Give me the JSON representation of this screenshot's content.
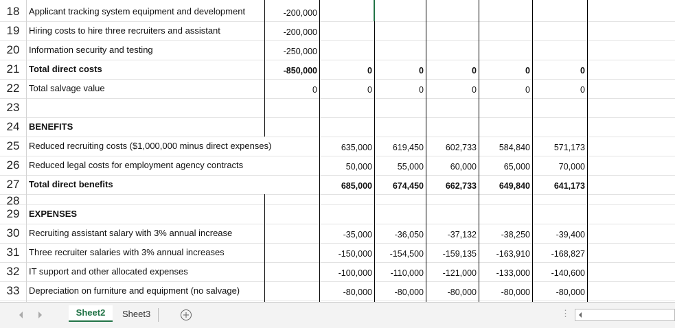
{
  "columns_x": null,
  "rows": [
    {
      "num": "18",
      "label": "Applicant tracking system equipment and development",
      "cells": [
        "-200,000",
        null,
        null,
        null,
        null,
        null
      ]
    },
    {
      "num": "19",
      "label": "Hiring costs to hire three recruiters and assistant",
      "cells": [
        "-200,000",
        null,
        null,
        null,
        null,
        null
      ]
    },
    {
      "num": "20",
      "label": "Information security and testing",
      "cells": [
        "-250,000",
        null,
        null,
        null,
        null,
        null
      ]
    },
    {
      "num": "21",
      "label": "Total direct costs",
      "bold": true,
      "cells": [
        "-850,000",
        "0",
        "0",
        "0",
        "0",
        "0"
      ]
    },
    {
      "num": "22",
      "label": "Total salvage value",
      "cells": [
        "0",
        "0",
        "0",
        "0",
        "0",
        "0"
      ]
    },
    {
      "num": "23",
      "label": null,
      "cells": [
        null,
        null,
        null,
        null,
        null,
        null
      ]
    },
    {
      "num": "24",
      "label": "BENEFITS",
      "bold": true,
      "cells": [
        null,
        null,
        null,
        null,
        null,
        null
      ]
    },
    {
      "num": "25",
      "label": "Reduced recruiting costs ($1,000,000 minus direct expenses)",
      "cells": [
        null,
        "635,000",
        "619,450",
        "602,733",
        "584,840",
        "571,173"
      ]
    },
    {
      "num": "26",
      "label": "Reduced legal costs for employment agency contracts",
      "cells": [
        null,
        "50,000",
        "55,000",
        "60,000",
        "65,000",
        "70,000"
      ]
    },
    {
      "num": "27",
      "label": "Total direct benefits",
      "bold": true,
      "cells": [
        null,
        "685,000",
        "674,450",
        "662,733",
        "649,840",
        "641,173"
      ]
    },
    {
      "num": "28",
      "label": null,
      "cells": [
        null,
        null,
        null,
        null,
        null,
        null
      ]
    },
    {
      "num": "29",
      "label": "EXPENSES",
      "bold": true,
      "cells": [
        null,
        null,
        null,
        null,
        null,
        null
      ]
    },
    {
      "num": "30",
      "label": "Recruiting assistant salary with 3% annual increase",
      "cells": [
        null,
        "-35,000",
        "-36,050",
        "-37,132",
        "-38,250",
        "-39,400"
      ]
    },
    {
      "num": "31",
      "label": "Three recruiter salaries with 3% annual increases",
      "cells": [
        null,
        "-150,000",
        "-154,500",
        "-159,135",
        "-163,910",
        "-168,827"
      ]
    },
    {
      "num": "32",
      "label": "IT support and other allocated expenses",
      "cells": [
        null,
        "-100,000",
        "-110,000",
        "-121,000",
        "-133,000",
        "-140,600"
      ]
    },
    {
      "num": "33",
      "label": "Depreciation on furniture and equipment (no salvage)",
      "cells": [
        null,
        "-80,000",
        "-80,000",
        "-80,000",
        "-80,000",
        "-80,000"
      ]
    }
  ],
  "tabs": {
    "active": "Sheet2",
    "other": "Sheet3"
  }
}
